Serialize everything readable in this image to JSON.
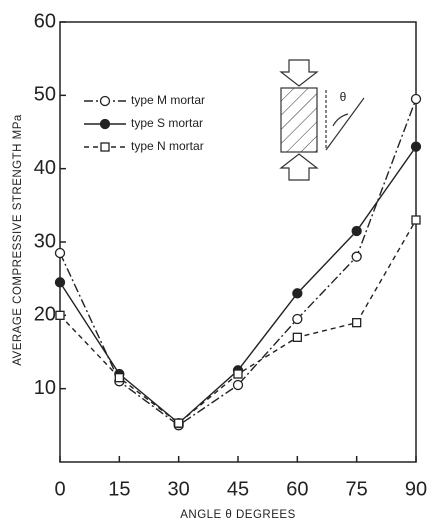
{
  "chart_data": {
    "type": "line",
    "x_label": "ANGLE θ DEGREES",
    "y_label": "AVERAGE COMPRESSIVE STRENGTH MPa",
    "inset_label": "θ",
    "x": [
      0,
      15,
      30,
      45,
      60,
      75,
      90
    ],
    "xlim": [
      0,
      90
    ],
    "xticks": [
      0,
      15,
      30,
      45,
      60,
      75,
      90
    ],
    "ylim": [
      0,
      60
    ],
    "yticks": [
      10,
      20,
      30,
      40,
      50,
      60
    ],
    "series": [
      {
        "name": "type M mortar",
        "color": "#222222",
        "marker": "circle-open",
        "linestyle": "dashdot",
        "values": [
          28.5,
          11,
          5,
          10.5,
          19.5,
          28,
          49.5
        ]
      },
      {
        "name": "type S mortar",
        "color": "#222222",
        "marker": "circle-filled",
        "linestyle": "solid",
        "values": [
          24.5,
          12,
          5.3,
          12.5,
          23,
          31.5,
          43
        ]
      },
      {
        "name": "type N mortar",
        "color": "#222222",
        "marker": "square-open",
        "linestyle": "dashed",
        "values": [
          20,
          11.5,
          5.3,
          12,
          17,
          19,
          33
        ]
      }
    ]
  }
}
